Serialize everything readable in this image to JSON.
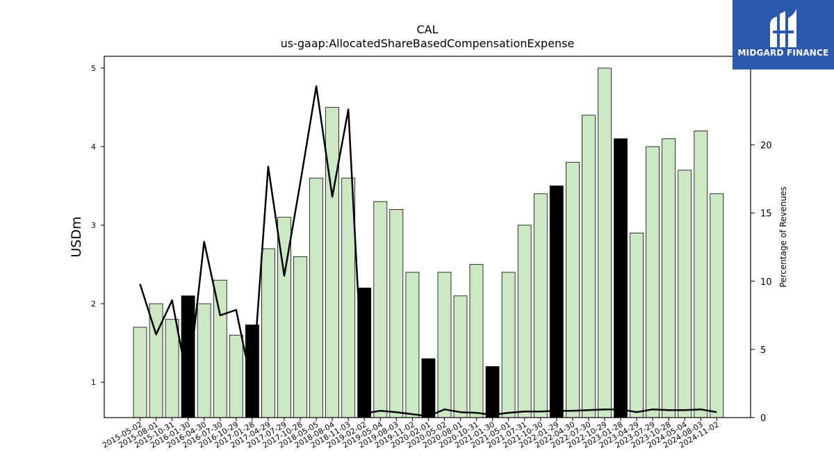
{
  "chart_data": {
    "type": "bar",
    "title": "CAL",
    "subtitle": "us-gaap:AllocatedShareBasedCompensationExpense",
    "ylabel": "USDm",
    "y2label": "Percentage of Revenues",
    "ylim": [
      0.55,
      5.15
    ],
    "y2lim": [
      0,
      26.5
    ],
    "yticks": [
      "1",
      "2",
      "3",
      "4",
      "5"
    ],
    "y2ticks": [
      "0",
      "5",
      "10",
      "15",
      "20"
    ],
    "grid": false,
    "legend": "none",
    "colors": {
      "bar": "#cce8c4",
      "highlight": "#000000",
      "line": "#000000",
      "edge": "#000000"
    },
    "categories": [
      "2015-05-02",
      "2015-08-01",
      "2015-10-31",
      "2016-01-30",
      "2016-04-30",
      "2016-07-30",
      "2016-10-29",
      "2017-01-28",
      "2017-04-29",
      "2017-07-29",
      "2017-10-28",
      "2018-05-05",
      "2018-08-04",
      "2018-11-03",
      "2019-02-02",
      "2019-05-04",
      "2019-08-03",
      "2019-11-02",
      "2020-02-01",
      "2020-05-02",
      "2020-08-01",
      "2020-10-31",
      "2021-01-30",
      "2021-05-01",
      "2021-07-31",
      "2021-10-30",
      "2022-01-29",
      "2022-04-30",
      "2022-07-30",
      "2022-10-29",
      "2023-01-28",
      "2023-04-29",
      "2023-07-29",
      "2023-10-28",
      "2024-05-04",
      "2024-08-03",
      "2024-11-02"
    ],
    "values": [
      1.7,
      2.0,
      1.8,
      2.1,
      2.0,
      2.3,
      1.6,
      1.73,
      2.7,
      3.1,
      2.6,
      3.6,
      4.5,
      3.6,
      2.2,
      3.3,
      3.2,
      2.4,
      1.3,
      2.4,
      2.1,
      2.5,
      1.2,
      2.4,
      3.0,
      3.4,
      3.5,
      3.8,
      4.4,
      5.0,
      4.1,
      2.9,
      4.0,
      4.1,
      3.7,
      4.2,
      3.4
    ],
    "highlight": [
      false,
      false,
      false,
      true,
      false,
      false,
      false,
      true,
      false,
      false,
      false,
      false,
      false,
      false,
      true,
      false,
      false,
      false,
      true,
      false,
      false,
      false,
      true,
      false,
      false,
      false,
      true,
      false,
      false,
      false,
      true,
      false,
      false,
      false,
      false,
      false,
      false
    ],
    "line_series": {
      "name": "",
      "axis": "right",
      "values": [
        9.8,
        6.1,
        8.6,
        2.4,
        12.9,
        7.5,
        7.9,
        2.2,
        18.4,
        10.4,
        17.2,
        24.3,
        16.2,
        22.6,
        0.3,
        0.5,
        0.4,
        0.25,
        0.1,
        0.6,
        0.4,
        0.35,
        0.2,
        0.35,
        0.45,
        0.45,
        0.5,
        0.5,
        0.55,
        0.6,
        0.6,
        0.4,
        0.6,
        0.55,
        0.55,
        0.6,
        0.4
      ]
    }
  },
  "logo": {
    "text": "MIDGARD FINANCE",
    "icon": "midgard-logo-icon"
  }
}
